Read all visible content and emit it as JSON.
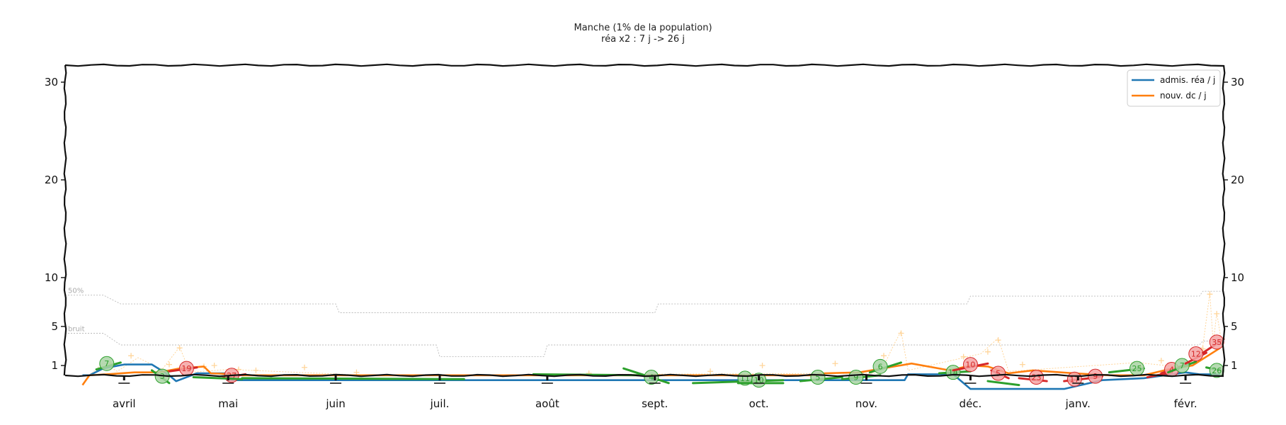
{
  "chart_data": {
    "type": "line",
    "title": "Manche (1% de la population)",
    "subtitle": "réa x2 : 7 j -> 26 j",
    "y_ticks": [
      1,
      5,
      10,
      20,
      30
    ],
    "ylim": [
      0,
      32
    ],
    "x_ticks": [
      "avril",
      "mai",
      "juin",
      "juil.",
      "août",
      "sept.",
      "oct.",
      "nov.",
      "déc.",
      "janv.",
      "févr."
    ],
    "x_range": [
      "2020-03-15",
      "2021-02-12"
    ],
    "legend_position": "top-right",
    "colors": {
      "rea": "#1f77b4",
      "dc": "#ff7f0e",
      "growth_up": "#d62728",
      "growth_down": "#2ca02c",
      "noise_markers": "#ffd59a",
      "reference_lines": "#bbbbbb"
    },
    "reference_lines": [
      {
        "label": "50%",
        "points": [
          [
            "2020-03-15",
            8.2
          ],
          [
            "2020-03-26",
            8.2
          ],
          [
            "2020-03-31",
            7.3
          ],
          [
            "2020-06-01",
            7.3
          ],
          [
            "2020-06-02",
            6.4
          ],
          [
            "2020-09-01",
            6.4
          ],
          [
            "2020-09-02",
            7.3
          ],
          [
            "2020-11-30",
            7.3
          ],
          [
            "2020-12-01",
            8.1
          ],
          [
            "2021-02-05",
            8.1
          ],
          [
            "2021-02-06",
            8.6
          ],
          [
            "2021-02-12",
            8.6
          ]
        ]
      },
      {
        "label": "bruit",
        "points": [
          [
            "2020-03-15",
            4.3
          ],
          [
            "2020-03-26",
            4.3
          ],
          [
            "2020-03-31",
            3.1
          ],
          [
            "2020-06-30",
            3.1
          ],
          [
            "2020-07-01",
            1.9
          ],
          [
            "2020-07-31",
            1.9
          ],
          [
            "2020-08-01",
            3.1
          ],
          [
            "2021-02-05",
            3.1
          ],
          [
            "2021-02-06",
            3.5
          ],
          [
            "2021-02-12",
            3.5
          ]
        ]
      }
    ],
    "series": [
      {
        "name": "admis. réa / j",
        "points": [
          [
            "2020-03-20",
            0.0
          ],
          [
            "2020-03-22",
            0.0
          ],
          [
            "2020-03-26",
            0.7
          ],
          [
            "2020-04-01",
            1.1
          ],
          [
            "2020-04-09",
            1.1
          ],
          [
            "2020-04-14",
            0.0
          ],
          [
            "2020-04-16",
            -0.6
          ],
          [
            "2020-04-22",
            0.2
          ],
          [
            "2020-04-30",
            0.2
          ],
          [
            "2020-05-01",
            -0.5
          ],
          [
            "2020-11-12",
            -0.5
          ],
          [
            "2020-11-13",
            0.1
          ],
          [
            "2020-11-26",
            0.1
          ],
          [
            "2020-12-01",
            -1.4
          ],
          [
            "2020-12-28",
            -1.4
          ],
          [
            "2021-01-08",
            -0.5
          ],
          [
            "2021-01-20",
            -0.3
          ],
          [
            "2021-02-01",
            0.3
          ],
          [
            "2021-02-05",
            0.1
          ],
          [
            "2021-02-11",
            0.1
          ]
        ]
      },
      {
        "name": "nouv. dc / j",
        "points": [
          [
            "2020-03-20",
            -1.0
          ],
          [
            "2020-03-22",
            0.0
          ],
          [
            "2020-03-27",
            0.1
          ],
          [
            "2020-04-04",
            0.3
          ],
          [
            "2020-04-11",
            0.3
          ],
          [
            "2020-04-17",
            0.7
          ],
          [
            "2020-04-24",
            0.9
          ],
          [
            "2020-04-26",
            0.2
          ],
          [
            "2020-05-03",
            0.1
          ],
          [
            "2020-05-05",
            0.0
          ],
          [
            "2020-10-17",
            0.0
          ],
          [
            "2020-10-20",
            0.2
          ],
          [
            "2020-10-30",
            0.3
          ],
          [
            "2020-11-09",
            0.9
          ],
          [
            "2020-11-14",
            1.2
          ],
          [
            "2020-11-25",
            0.5
          ],
          [
            "2020-12-01",
            1.0
          ],
          [
            "2020-12-06",
            0.9
          ],
          [
            "2020-12-12",
            0.2
          ],
          [
            "2020-12-19",
            0.5
          ],
          [
            "2020-12-31",
            0.2
          ],
          [
            "2021-01-10",
            0.0
          ],
          [
            "2021-01-20",
            0.0
          ],
          [
            "2021-01-27",
            0.6
          ],
          [
            "2021-02-03",
            1.0
          ],
          [
            "2021-02-11",
            2.8
          ]
        ]
      }
    ],
    "growth_segments": [
      {
        "color": "growth_down",
        "from": [
          "2020-03-24",
          0.6
        ],
        "to": [
          "2020-03-31",
          1.3
        ],
        "label": "7",
        "label_at": [
          "2020-03-27",
          1.2
        ]
      },
      {
        "color": "growth_down",
        "from": [
          "2020-04-09",
          0.5
        ],
        "to": [
          "2020-04-14",
          -0.8
        ],
        "label": "3",
        "label_at": [
          "2020-04-12",
          -0.1
        ]
      },
      {
        "color": "growth_up",
        "from": [
          "2020-04-14",
          0.4
        ],
        "to": [
          "2020-04-22",
          0.8
        ],
        "label": "19",
        "label_at": [
          "2020-04-19",
          0.7
        ]
      },
      {
        "color": "growth_up",
        "from": [
          "2020-04-29",
          -0.3
        ],
        "to": [
          "2020-05-06",
          0.1
        ],
        "label": "27",
        "label_at": [
          "2020-05-02",
          0.0
        ]
      },
      {
        "color": "growth_down",
        "from": [
          "2020-04-21",
          -0.2
        ],
        "to": [
          "2020-05-05",
          -0.4
        ],
        "label": "",
        "label_at": null
      },
      {
        "color": "growth_down",
        "from": [
          "2020-05-05",
          -0.3
        ],
        "to": [
          "2020-07-08",
          -0.4
        ],
        "label": "",
        "label_at": null
      },
      {
        "color": "growth_down",
        "from": [
          "2020-07-28",
          0.1
        ],
        "to": [
          "2020-08-28",
          0.0
        ],
        "label": "",
        "label_at": null
      },
      {
        "color": "growth_down",
        "from": [
          "2020-08-23",
          0.7
        ],
        "to": [
          "2020-09-05",
          -0.8
        ],
        "label": "4",
        "label_at": [
          "2020-08-31",
          -0.2
        ]
      },
      {
        "color": "growth_down",
        "from": [
          "2020-09-12",
          -0.8
        ],
        "to": [
          "2020-10-08",
          -0.5
        ],
        "label": "11",
        "label_at": [
          "2020-09-27",
          -0.3
        ]
      },
      {
        "color": "growth_down",
        "from": [
          "2020-09-25",
          -0.8
        ],
        "to": [
          "2020-10-08",
          -0.8
        ],
        "label": "10",
        "label_at": [
          "2020-10-01",
          -0.5
        ]
      },
      {
        "color": "growth_down",
        "from": [
          "2020-10-13",
          -0.6
        ],
        "to": [
          "2020-10-25",
          -0.2
        ],
        "label": "5",
        "label_at": [
          "2020-10-18",
          -0.2
        ]
      },
      {
        "color": "growth_down",
        "from": [
          "2020-10-25",
          -0.4
        ],
        "to": [
          "2020-11-05",
          0.0
        ],
        "label": "9",
        "label_at": [
          "2020-10-29",
          -0.2
        ]
      },
      {
        "color": "growth_down",
        "from": [
          "2020-11-02",
          0.3
        ],
        "to": [
          "2020-11-11",
          1.3
        ],
        "label": "6",
        "label_at": [
          "2020-11-05",
          0.9
        ]
      },
      {
        "color": "growth_down",
        "from": [
          "2020-11-22",
          0.2
        ],
        "to": [
          "2020-12-01",
          0.4
        ],
        "label": "14",
        "label_at": [
          "2020-11-26",
          0.3
        ]
      },
      {
        "color": "growth_up",
        "from": [
          "2020-11-26",
          0.5
        ],
        "to": [
          "2020-12-06",
          1.2
        ],
        "label": "10",
        "label_at": [
          "2020-12-01",
          1.1
        ]
      },
      {
        "color": "growth_down",
        "from": [
          "2020-12-06",
          -0.6
        ],
        "to": [
          "2020-12-15",
          -1.0
        ],
        "label": "",
        "label_at": null
      },
      {
        "color": "growth_up",
        "from": [
          "2020-12-07",
          0.5
        ],
        "to": [
          "2020-12-12",
          -0.3
        ],
        "label": "5",
        "label_at": [
          "2020-12-09",
          0.2
        ]
      },
      {
        "color": "growth_up",
        "from": [
          "2020-12-15",
          -0.3
        ],
        "to": [
          "2020-12-23",
          -0.6
        ],
        "label": "23",
        "label_at": [
          "2020-12-20",
          -0.2
        ]
      },
      {
        "color": "growth_up",
        "from": [
          "2020-12-28",
          -0.6
        ],
        "to": [
          "2021-01-07",
          -0.2
        ],
        "label": "17",
        "label_at": [
          "2020-12-31",
          -0.4
        ]
      },
      {
        "color": "growth_up",
        "from": [
          "2021-01-04",
          -0.3
        ],
        "to": [
          "2021-01-08",
          -0.1
        ],
        "label": "9",
        "label_at": [
          "2021-01-06",
          -0.1
        ]
      },
      {
        "color": "growth_down",
        "from": [
          "2021-01-10",
          0.3
        ],
        "to": [
          "2021-01-20",
          0.7
        ],
        "label": "25",
        "label_at": [
          "2021-01-18",
          0.7
        ]
      },
      {
        "color": "growth_up",
        "from": [
          "2021-01-21",
          -0.2
        ],
        "to": [
          "2021-01-28",
          0.3
        ],
        "label": "",
        "label_at": null
      },
      {
        "color": "growth_up",
        "from": [
          "2021-01-25",
          0.2
        ],
        "to": [
          "2021-02-02",
          1.2
        ],
        "label": "4",
        "label_at": [
          "2021-01-28",
          0.6
        ]
      },
      {
        "color": "growth_down",
        "from": [
          "2021-01-27",
          0.3
        ],
        "to": [
          "2021-02-04",
          1.4
        ],
        "label": "7",
        "label_at": [
          "2021-01-31",
          1.0
        ]
      },
      {
        "color": "growth_up",
        "from": [
          "2021-02-01",
          1.2
        ],
        "to": [
          "2021-02-07",
          2.3
        ],
        "label": "12",
        "label_at": [
          "2021-02-04",
          2.2
        ]
      },
      {
        "color": "growth_up",
        "from": [
          "2021-02-06",
          2.3
        ],
        "to": [
          "2021-02-12",
          3.7
        ],
        "label": "35",
        "label_at": [
          "2021-02-10",
          3.4
        ]
      },
      {
        "color": "growth_down",
        "from": [
          "2021-02-07",
          0.8
        ],
        "to": [
          "2021-02-11",
          0.5
        ],
        "label": "26",
        "label_at": [
          "2021-02-10",
          0.5
        ]
      }
    ],
    "noise_markers": [
      [
        "2020-03-28",
        1.2
      ],
      [
        "2020-04-03",
        2.0
      ],
      [
        "2020-04-14",
        1.1
      ],
      [
        "2020-04-17",
        2.8
      ],
      [
        "2020-04-24",
        0.9
      ],
      [
        "2020-04-27",
        1.0
      ],
      [
        "2020-05-04",
        0.6
      ],
      [
        "2020-05-09",
        0.5
      ],
      [
        "2020-05-23",
        0.8
      ],
      [
        "2020-06-07",
        0.3
      ],
      [
        "2020-08-13",
        0.2
      ],
      [
        "2020-09-17",
        0.4
      ],
      [
        "2020-10-02",
        1.0
      ],
      [
        "2020-10-23",
        1.2
      ],
      [
        "2020-11-06",
        2.0
      ],
      [
        "2020-11-11",
        4.3
      ],
      [
        "2020-11-29",
        1.9
      ],
      [
        "2020-12-06",
        2.4
      ],
      [
        "2020-12-09",
        3.6
      ],
      [
        "2020-12-16",
        1.1
      ],
      [
        "2021-01-19",
        0.9
      ],
      [
        "2021-01-25",
        1.5
      ],
      [
        "2021-02-06",
        2.7
      ],
      [
        "2021-02-08",
        8.3
      ],
      [
        "2021-02-10",
        6.3
      ]
    ],
    "noise_trace": [
      [
        "2020-03-22",
        0.0
      ],
      [
        "2020-03-26",
        1.3
      ],
      [
        "2020-03-30",
        0.4
      ],
      [
        "2020-04-05",
        1.8
      ],
      [
        "2020-04-12",
        0.6
      ],
      [
        "2020-04-17",
        2.9
      ],
      [
        "2020-04-20",
        0.3
      ],
      [
        "2020-05-01",
        0.6
      ],
      [
        "2020-06-10",
        0.0
      ],
      [
        "2020-11-05",
        0.2
      ],
      [
        "2020-11-09",
        3.2
      ],
      [
        "2020-11-11",
        4.5
      ],
      [
        "2020-11-13",
        0.5
      ],
      [
        "2020-12-04",
        2.2
      ],
      [
        "2020-12-09",
        3.8
      ],
      [
        "2020-12-12",
        0.4
      ],
      [
        "2021-01-18",
        1.3
      ],
      [
        "2021-02-01",
        0.8
      ],
      [
        "2021-02-06",
        3.0
      ],
      [
        "2021-02-08",
        8.4
      ],
      [
        "2021-02-09",
        3.2
      ],
      [
        "2021-02-10",
        6.4
      ],
      [
        "2021-02-12",
        2.0
      ]
    ]
  }
}
